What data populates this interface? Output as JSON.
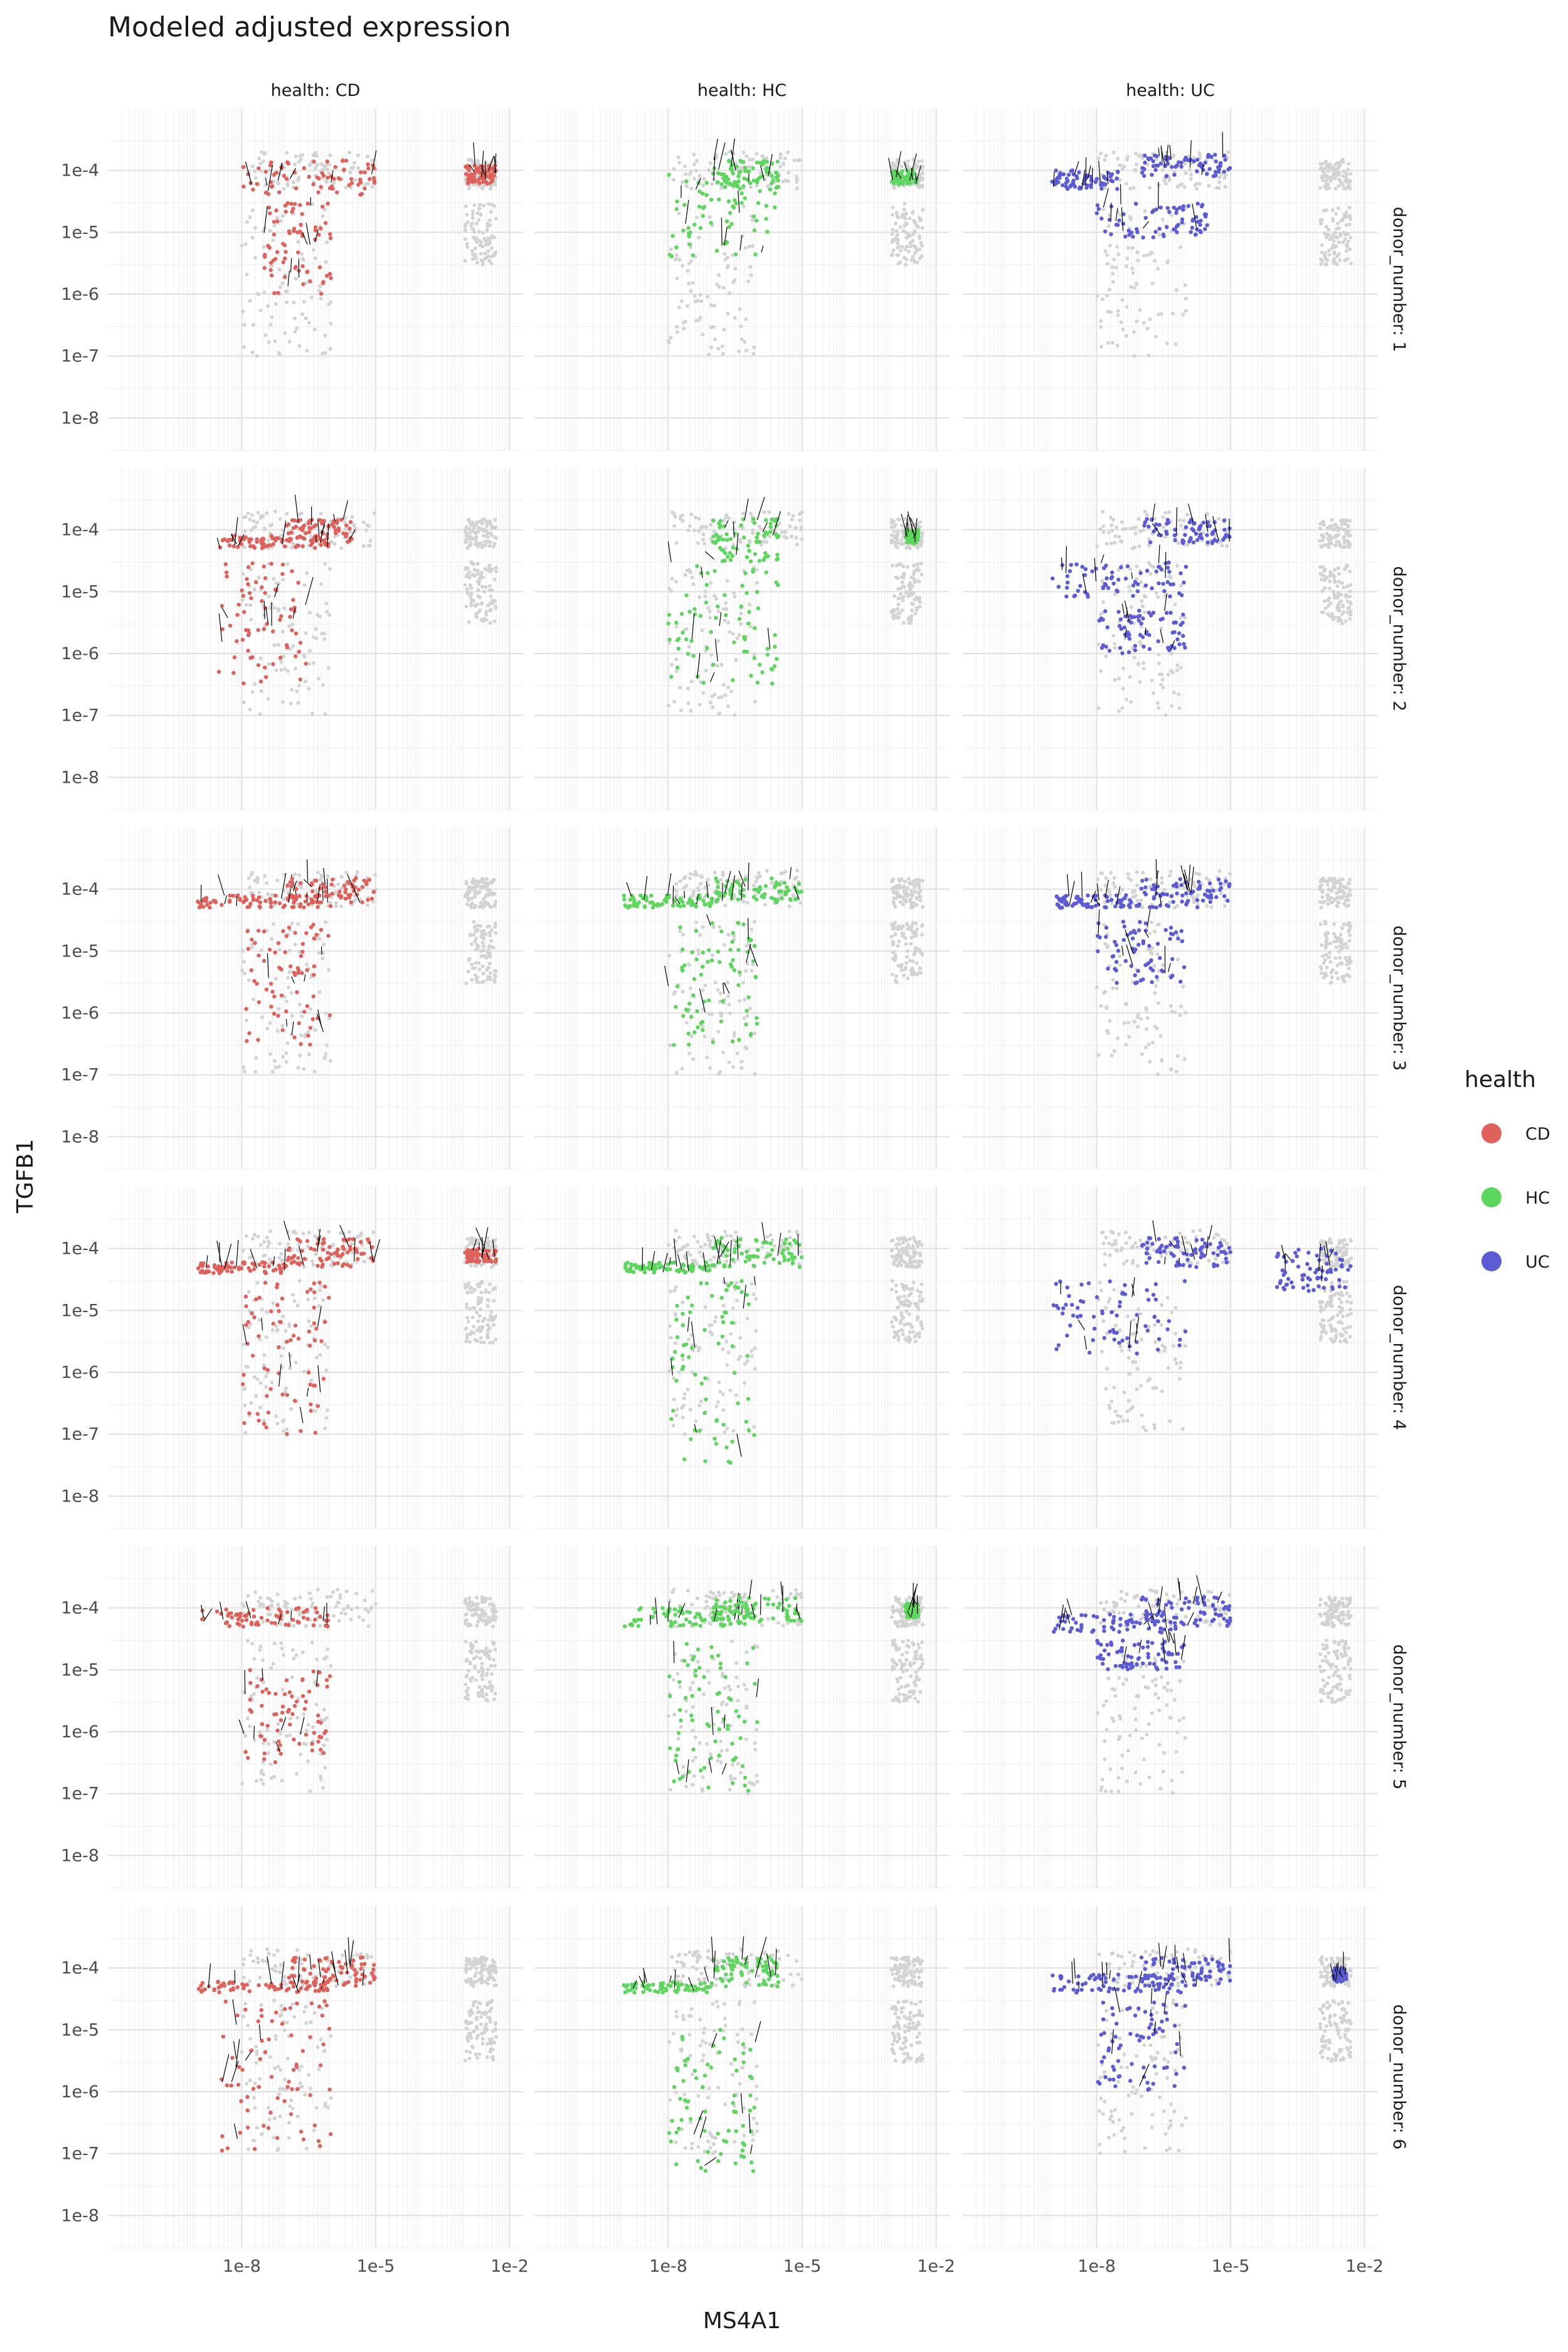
{
  "chart_data": {
    "type": "scatter",
    "title": "Modeled adjusted expression",
    "xlabel": "MS4A1",
    "ylabel": "TGFB1",
    "x_scale": "log10",
    "y_scale": "log10",
    "xlim": [
      1e-11,
      0.02
    ],
    "ylim": [
      3e-09,
      0.001
    ],
    "x_ticks": [
      {
        "value": 1e-08,
        "label": "1e-8"
      },
      {
        "value": 1e-05,
        "label": "1e-5"
      },
      {
        "value": 0.01,
        "label": "1e-2"
      }
    ],
    "y_ticks": [
      {
        "value": 0.0001,
        "label": "1e-4"
      },
      {
        "value": 1e-05,
        "label": "1e-5"
      },
      {
        "value": 1e-06,
        "label": "1e-6"
      },
      {
        "value": 1e-07,
        "label": "1e-7"
      },
      {
        "value": 1e-08,
        "label": "1e-8"
      }
    ],
    "grid": true,
    "facet_columns": [
      "health: CD",
      "health: HC",
      "health: UC"
    ],
    "facet_rows": [
      "donor_number: 1",
      "donor_number: 2",
      "donor_number: 3",
      "donor_number: 4",
      "donor_number: 5",
      "donor_number: 6"
    ],
    "background_points_color": "#d3d3d3",
    "arrow_color": "#000000",
    "legend": {
      "title": "health",
      "placement": "right",
      "entries": [
        {
          "label": "CD",
          "color": "#e0605a"
        },
        {
          "label": "HC",
          "color": "#5cd65c"
        },
        {
          "label": "UC",
          "color": "#5b5bd6"
        }
      ]
    },
    "clusters_background": [
      {
        "x": [
          1e-08,
          1e-05
        ],
        "y": [
          5e-05,
          0.0002
        ]
      },
      {
        "x": [
          1e-08,
          1e-06
        ],
        "y": [
          1e-07,
          3e-05
        ]
      },
      {
        "x": [
          0.001,
          0.005
        ],
        "y": [
          5e-05,
          0.00015
        ]
      },
      {
        "x": [
          0.001,
          0.005
        ],
        "y": [
          3e-06,
          3e-05
        ]
      }
    ],
    "panels": [
      {
        "column": "health: CD",
        "row": "donor_number: 1",
        "clusters": [
          {
            "x": [
              1e-08,
              1e-05
            ],
            "y": [
              4e-05,
              0.00015
            ]
          },
          {
            "x": [
              3e-08,
              1e-06
            ],
            "y": [
              1e-06,
              3e-05
            ]
          },
          {
            "x": [
              0.001,
              0.005
            ],
            "y": [
              6e-05,
              0.00012
            ]
          }
        ]
      },
      {
        "column": "health: HC",
        "row": "donor_number: 1",
        "clusters": [
          {
            "x": [
              1e-08,
              3e-06
            ],
            "y": [
              4e-06,
              0.0001
            ]
          },
          {
            "x": [
              1e-07,
              3e-06
            ],
            "y": [
              5e-05,
              0.00015
            ]
          },
          {
            "x": [
              0.001,
              0.004
            ],
            "y": [
              6e-05,
              0.0001
            ]
          }
        ]
      },
      {
        "column": "health: UC",
        "row": "donor_number: 1",
        "clusters": [
          {
            "x": [
              1e-09,
              3e-08
            ],
            "y": [
              5e-05,
              0.0001
            ]
          },
          {
            "x": [
              1e-08,
              3e-06
            ],
            "y": [
              8e-06,
              3e-05
            ]
          },
          {
            "x": [
              1e-07,
              1e-05
            ],
            "y": [
              8e-05,
              0.00018
            ]
          }
        ]
      },
      {
        "column": "health: CD",
        "row": "donor_number: 2",
        "clusters": [
          {
            "x": [
              1e-07,
              3e-06
            ],
            "y": [
              6e-05,
              0.00015
            ]
          },
          {
            "x": [
              3e-09,
              3e-07
            ],
            "y": [
              3e-07,
              3e-05
            ]
          },
          {
            "x": [
              3e-09,
              1e-06
            ],
            "y": [
              5e-05,
              8e-05
            ]
          }
        ]
      },
      {
        "column": "health: HC",
        "row": "donor_number: 2",
        "clusters": [
          {
            "x": [
              1e-08,
              3e-06
            ],
            "y": [
              3e-07,
              3e-05
            ]
          },
          {
            "x": [
              1e-07,
              3e-06
            ],
            "y": [
              3e-05,
              0.00015
            ]
          },
          {
            "x": [
              0.002,
              0.004
            ],
            "y": [
              6e-05,
              0.0001
            ]
          }
        ]
      },
      {
        "column": "health: UC",
        "row": "donor_number: 2",
        "clusters": [
          {
            "x": [
              1e-09,
              1e-06
            ],
            "y": [
              8e-06,
              3e-05
            ]
          },
          {
            "x": [
              1e-07,
              1e-05
            ],
            "y": [
              6e-05,
              0.00015
            ]
          },
          {
            "x": [
              1e-08,
              1e-06
            ],
            "y": [
              1e-06,
              5e-06
            ]
          }
        ]
      },
      {
        "column": "health: CD",
        "row": "donor_number: 3",
        "clusters": [
          {
            "x": [
              1e-09,
              1e-06
            ],
            "y": [
              5e-05,
              8e-05
            ]
          },
          {
            "x": [
              1e-08,
              1e-06
            ],
            "y": [
              3e-07,
              3e-05
            ]
          },
          {
            "x": [
              1e-07,
              1e-05
            ],
            "y": [
              6e-05,
              0.00015
            ]
          }
        ]
      },
      {
        "column": "health: HC",
        "row": "donor_number: 3",
        "clusters": [
          {
            "x": [
              1e-09,
              1e-07
            ],
            "y": [
              5e-05,
              8e-05
            ]
          },
          {
            "x": [
              1e-08,
              1e-06
            ],
            "y": [
              3e-07,
              3e-05
            ]
          },
          {
            "x": [
              1e-07,
              1e-05
            ],
            "y": [
              6e-05,
              0.00015
            ]
          }
        ]
      },
      {
        "column": "health: UC",
        "row": "donor_number: 3",
        "clusters": [
          {
            "x": [
              1e-09,
              1e-07
            ],
            "y": [
              5e-05,
              8e-05
            ]
          },
          {
            "x": [
              1e-08,
              1e-06
            ],
            "y": [
              3e-06,
              3e-05
            ]
          },
          {
            "x": [
              1e-07,
              1e-05
            ],
            "y": [
              5e-05,
              0.00015
            ]
          }
        ]
      },
      {
        "column": "health: CD",
        "row": "donor_number: 4",
        "clusters": [
          {
            "x": [
              1e-09,
              1e-07
            ],
            "y": [
              4e-05,
              6e-05
            ]
          },
          {
            "x": [
              1e-08,
              1e-06
            ],
            "y": [
              1e-07,
              3e-05
            ]
          },
          {
            "x": [
              1e-07,
              1e-05
            ],
            "y": [
              5e-05,
              0.00015
            ]
          },
          {
            "x": [
              0.001,
              0.005
            ],
            "y": [
              6e-05,
              0.0001
            ]
          }
        ]
      },
      {
        "column": "health: HC",
        "row": "donor_number: 4",
        "clusters": [
          {
            "x": [
              1e-09,
              1e-07
            ],
            "y": [
              4e-05,
              6e-05
            ]
          },
          {
            "x": [
              1e-08,
              1e-06
            ],
            "y": [
              3e-08,
              3e-05
            ]
          },
          {
            "x": [
              1e-07,
              1e-05
            ],
            "y": [
              5e-05,
              0.00015
            ]
          }
        ]
      },
      {
        "column": "health: UC",
        "row": "donor_number: 4",
        "clusters": [
          {
            "x": [
              1e-09,
              1e-06
            ],
            "y": [
              2e-06,
              3e-05
            ]
          },
          {
            "x": [
              1e-07,
              1e-05
            ],
            "y": [
              5e-05,
              0.00015
            ]
          },
          {
            "x": [
              0.0001,
              0.005
            ],
            "y": [
              2e-05,
              0.0001
            ]
          }
        ]
      },
      {
        "column": "health: CD",
        "row": "donor_number: 5",
        "clusters": [
          {
            "x": [
              1e-09,
              1e-06
            ],
            "y": [
              5e-05,
              0.0001
            ]
          },
          {
            "x": [
              1e-08,
              1e-06
            ],
            "y": [
              3e-07,
              1e-05
            ]
          }
        ]
      },
      {
        "column": "health: HC",
        "row": "donor_number: 5",
        "clusters": [
          {
            "x": [
              1e-09,
              1e-06
            ],
            "y": [
              5e-05,
              0.0001
            ]
          },
          {
            "x": [
              1e-08,
              1e-06
            ],
            "y": [
              1e-07,
              3e-05
            ]
          },
          {
            "x": [
              1e-07,
              1e-05
            ],
            "y": [
              6e-05,
              0.00015
            ]
          },
          {
            "x": [
              0.002,
              0.004
            ],
            "y": [
              7e-05,
              0.00012
            ]
          }
        ]
      },
      {
        "column": "health: UC",
        "row": "donor_number: 5",
        "clusters": [
          {
            "x": [
              1e-09,
              1e-06
            ],
            "y": [
              4e-05,
              8e-05
            ]
          },
          {
            "x": [
              1e-08,
              1e-06
            ],
            "y": [
              1e-05,
              3e-05
            ]
          },
          {
            "x": [
              1e-07,
              1e-05
            ],
            "y": [
              5e-05,
              0.00015
            ]
          }
        ]
      },
      {
        "column": "health: CD",
        "row": "donor_number: 6",
        "clusters": [
          {
            "x": [
              1e-09,
              1e-06
            ],
            "y": [
              4e-05,
              6e-05
            ]
          },
          {
            "x": [
              3e-09,
              1e-06
            ],
            "y": [
              1e-07,
              3e-05
            ]
          },
          {
            "x": [
              1e-07,
              1e-05
            ],
            "y": [
              5e-05,
              0.00015
            ]
          }
        ]
      },
      {
        "column": "health: HC",
        "row": "donor_number: 6",
        "clusters": [
          {
            "x": [
              1e-09,
              1e-07
            ],
            "y": [
              4e-05,
              6e-05
            ]
          },
          {
            "x": [
              1e-08,
              1e-06
            ],
            "y": [
              5e-08,
              1e-05
            ]
          },
          {
            "x": [
              1e-07,
              3e-06
            ],
            "y": [
              5e-05,
              0.00015
            ]
          }
        ]
      },
      {
        "column": "health: UC",
        "row": "donor_number: 6",
        "clusters": [
          {
            "x": [
              1e-09,
              1e-06
            ],
            "y": [
              4e-05,
              8e-05
            ]
          },
          {
            "x": [
              1e-08,
              1e-06
            ],
            "y": [
              1e-06,
              3e-05
            ]
          },
          {
            "x": [
              1e-07,
              1e-05
            ],
            "y": [
              5e-05,
              0.00015
            ]
          },
          {
            "x": [
              0.002,
              0.004
            ],
            "y": [
              6e-05,
              0.0001
            ]
          }
        ]
      }
    ]
  }
}
